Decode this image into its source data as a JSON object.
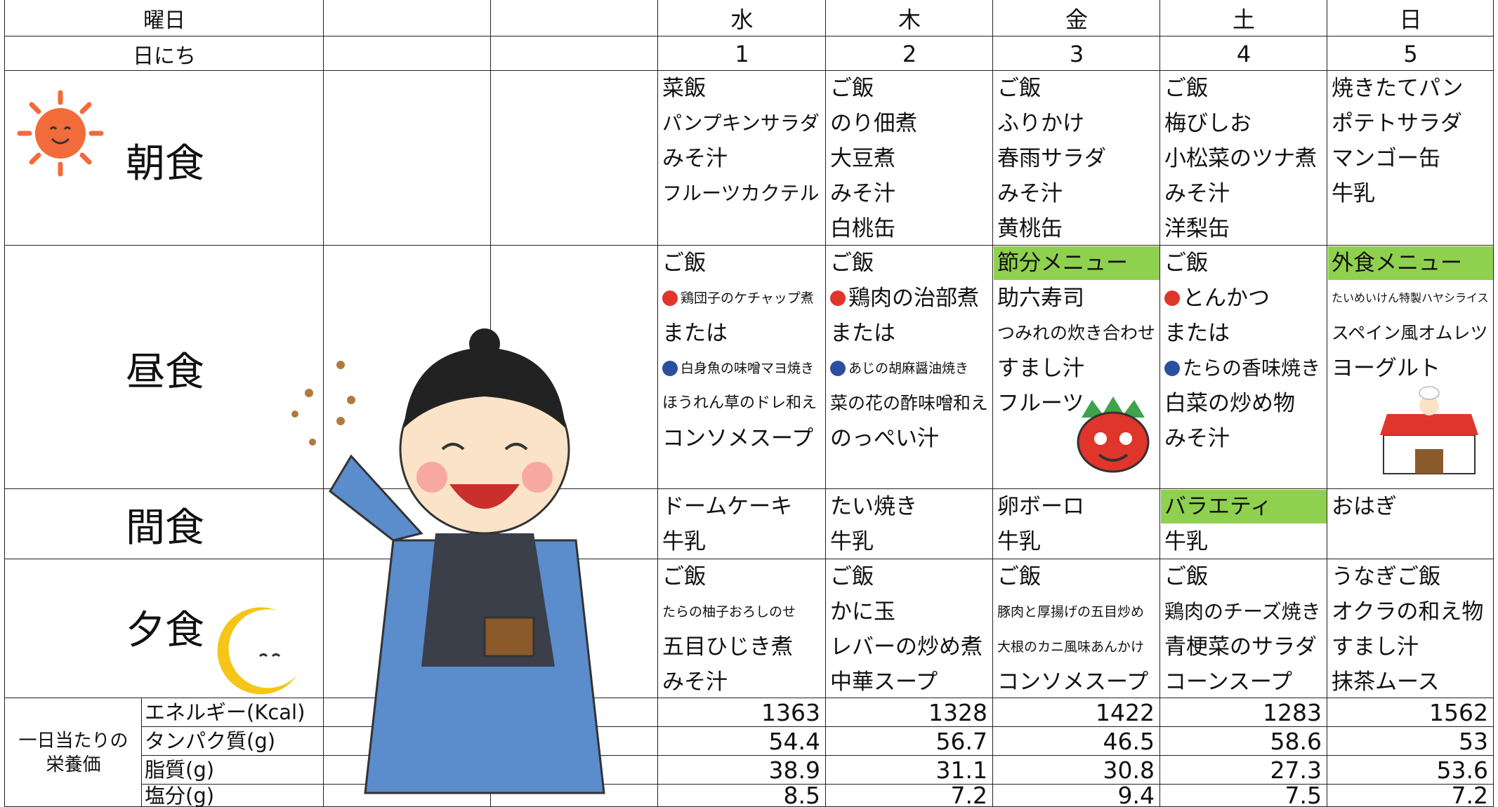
{
  "header": {
    "weekday_label": "曜日",
    "date_label": "日にち"
  },
  "meal_labels": {
    "breakfast": "朝食",
    "lunch": "昼食",
    "snack": "間食",
    "dinner": "夕食"
  },
  "days": [
    {
      "weekday": "水",
      "date": 1,
      "breakfast": [
        "菜飯",
        "パンプキンサラダ",
        "みそ汁",
        "フルーツカクテル"
      ],
      "lunch": [
        "ご飯",
        {
          "text": "鶏団子のケチャップ煮",
          "small": true,
          "icon": "#e0352b"
        },
        "または",
        {
          "text": "白身魚の味噌マヨ焼き",
          "small": true,
          "icon": "#2b4fa0"
        },
        "ほうれん草のドレ和え",
        "コンソメスープ"
      ],
      "snack": [
        "ドームケーキ",
        "牛乳"
      ],
      "dinner": [
        "ご飯",
        {
          "text": "たらの柚子おろしのせ",
          "small": true
        },
        "五目ひじき煮",
        "みそ汁"
      ]
    },
    {
      "weekday": "木",
      "date": 2,
      "breakfast": [
        "ご飯",
        "のり佃煮",
        "大豆煮",
        "みそ汁",
        "白桃缶"
      ],
      "lunch": [
        "ご飯",
        {
          "text": "鶏肉の治部煮",
          "icon": "#e0352b"
        },
        "または",
        {
          "text": "あじの胡麻醤油焼き",
          "small": true,
          "icon": "#2b4fa0"
        },
        "菜の花の酢味噌和え",
        "のっぺい汁"
      ],
      "snack": [
        "たい焼き",
        "牛乳"
      ],
      "dinner": [
        "ご飯",
        "かに玉",
        "レバーの炒め煮",
        "中華スープ"
      ]
    },
    {
      "weekday": "金",
      "date": 3,
      "breakfast": [
        "ご飯",
        "ふりかけ",
        "春雨サラダ",
        "みそ汁",
        "黄桃缶"
      ],
      "lunch": [
        {
          "text": "節分メニュー",
          "highlight": "#8fd14f"
        },
        "助六寿司",
        "つみれの炊き合わせ",
        "すまし汁",
        "フルーツ"
      ],
      "snack": [
        "卵ボーロ",
        "牛乳"
      ],
      "dinner": [
        "ご飯",
        {
          "text": "豚肉と厚揚げの五目炒め",
          "small": true
        },
        {
          "text": "大根のカニ風味あんかけ",
          "small": true
        },
        "コンソメスープ"
      ]
    },
    {
      "weekday": "土",
      "date": 4,
      "breakfast": [
        "ご飯",
        "梅びしお",
        "小松菜のツナ煮",
        "みそ汁",
        "洋梨缶"
      ],
      "lunch": [
        "ご飯",
        {
          "text": "とんかつ",
          "icon": "#e0352b"
        },
        "または",
        {
          "text": "たらの香味焼き",
          "icon": "#2b4fa0"
        },
        "白菜の炒め物",
        "みそ汁"
      ],
      "snack": [
        {
          "text": "バラエティ",
          "highlight": "#8fd14f"
        },
        "牛乳"
      ],
      "dinner": [
        "ご飯",
        "鶏肉のチーズ焼き",
        "青梗菜のサラダ",
        "コーンスープ"
      ]
    },
    {
      "weekday": "日",
      "date": 5,
      "breakfast": [
        "焼きたてパン",
        "ポテトサラダ",
        "マンゴー缶",
        "牛乳"
      ],
      "lunch": [
        {
          "text": "外食メニュー",
          "highlight": "#8fd14f"
        },
        {
          "text": "たいめいけん特製ハヤシライス",
          "small": true
        },
        "スペイン風オムレツ",
        "ヨーグルト"
      ],
      "snack": [
        "おはぎ"
      ],
      "dinner": [
        "うなぎご飯",
        "オクラの和え物",
        "すまし汁",
        "抹茶ムース"
      ]
    }
  ],
  "nutrition": {
    "label": "一日当たりの\n栄養価",
    "items": [
      {
        "name": "エネルギー(Kcal)",
        "values": [
          1363,
          1328,
          1422,
          1283,
          1562
        ]
      },
      {
        "name": "タンパク質(g)",
        "values": [
          54.4,
          56.7,
          46.5,
          58.6,
          53
        ]
      },
      {
        "name": "脂質(g)",
        "values": [
          38.9,
          31.1,
          30.8,
          27.3,
          53.6
        ]
      },
      {
        "name": "塩分(g)",
        "values": [
          8.5,
          7.2,
          9.4,
          7.5,
          7.2
        ]
      }
    ]
  }
}
